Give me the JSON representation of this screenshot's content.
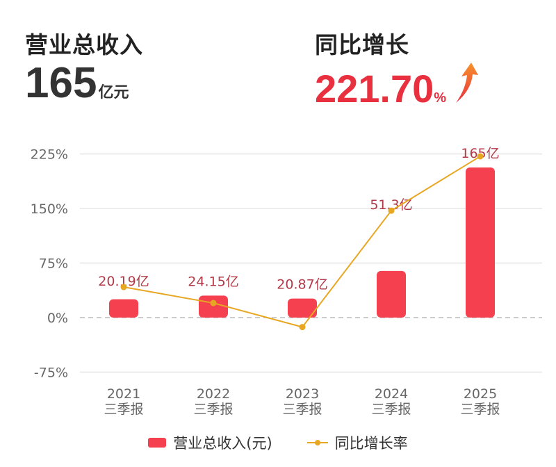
{
  "header": {
    "revenue_title": "营业总收入",
    "revenue_value": "165",
    "revenue_unit": "亿元",
    "growth_title": "同比增长",
    "growth_value": "221.70",
    "growth_unit": "%",
    "growth_icon": "arrow-up-icon"
  },
  "chart_data": {
    "type": "bar+line",
    "categories": [
      "2021\n三季报",
      "2022\n三季报",
      "2023\n三季报",
      "2024\n三季报",
      "2025\n三季报"
    ],
    "category_years": [
      "2021",
      "2022",
      "2023",
      "2024",
      "2025"
    ],
    "category_sub": "三季报",
    "yticks": [
      "225%",
      "150%",
      "75%",
      "0%",
      "-75%"
    ],
    "ylim": [
      -75,
      225
    ],
    "grid": true,
    "legend_position": "bottom",
    "series": [
      {
        "name": "营业总收入(元)",
        "type": "bar",
        "values": [
          20.19,
          24.15,
          20.87,
          51.3,
          165
        ],
        "labels": [
          "20.19亿",
          "24.15亿",
          "20.87亿",
          "51.3亿",
          "165亿"
        ],
        "color": "#f5404f"
      },
      {
        "name": "同比增长率",
        "type": "line",
        "values": [
          42,
          20,
          -13,
          147,
          221.7
        ],
        "color": "#e8a722"
      }
    ]
  }
}
